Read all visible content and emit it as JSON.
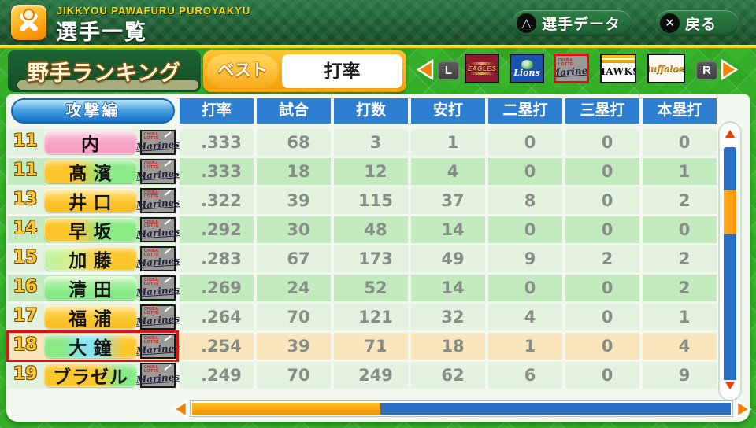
{
  "header": {
    "app_subtitle": "JIKKYOU PAWAFURU PUROYAKYU",
    "title": "選手一覧",
    "player_data_button": {
      "icon_glyph": "△",
      "label": "選手データ"
    },
    "back_button": {
      "icon_glyph": "✕",
      "label": "戻る"
    }
  },
  "subheader": {
    "ranking_title": "野手ランキング",
    "mode_label": "ベスト",
    "stat_selector_value": "打率",
    "left_bumper": "L",
    "right_bumper": "R",
    "teams": [
      {
        "id": "eagles",
        "label": "EAGLES",
        "selected": false
      },
      {
        "id": "lions",
        "label": "Lions",
        "selected": false
      },
      {
        "id": "marines",
        "label": "Marines",
        "sub_label": "CHIBA LOTTE",
        "selected": true
      },
      {
        "id": "hawks",
        "label": "HAWKS",
        "selected": false
      },
      {
        "id": "buffaloes",
        "label": "Buffaloes",
        "selected": false
      }
    ]
  },
  "table": {
    "section_label": "攻撃編",
    "columns": [
      "打率",
      "試合",
      "打数",
      "安打",
      "二塁打",
      "三塁打",
      "本塁打"
    ],
    "badge_label": "Marines",
    "badge_sub_label": "CHIBA LOTTE",
    "rows": [
      {
        "rank": "11",
        "name": "内",
        "pill": "pink",
        "selected": false,
        "stats": [
          ".333",
          "68",
          "3",
          "1",
          "0",
          "0",
          "0"
        ]
      },
      {
        "rank": "11",
        "name": "髙 濱",
        "pill": "yg",
        "selected": false,
        "stats": [
          ".333",
          "18",
          "12",
          "4",
          "0",
          "0",
          "1"
        ]
      },
      {
        "rank": "13",
        "name": "井 口",
        "pill": "yellow",
        "selected": false,
        "stats": [
          ".322",
          "39",
          "115",
          "37",
          "8",
          "0",
          "2"
        ]
      },
      {
        "rank": "14",
        "name": "早 坂",
        "pill": "yg",
        "selected": false,
        "stats": [
          ".292",
          "30",
          "48",
          "14",
          "0",
          "0",
          "0"
        ]
      },
      {
        "rank": "15",
        "name": "加 藤",
        "pill": "gy",
        "selected": false,
        "stats": [
          ".283",
          "67",
          "173",
          "49",
          "9",
          "2",
          "2"
        ]
      },
      {
        "rank": "16",
        "name": "清 田",
        "pill": "green",
        "selected": false,
        "stats": [
          ".269",
          "24",
          "52",
          "14",
          "0",
          "0",
          "2"
        ]
      },
      {
        "rank": "17",
        "name": "福 浦",
        "pill": "yellow",
        "selected": false,
        "stats": [
          ".264",
          "70",
          "121",
          "32",
          "4",
          "0",
          "1"
        ]
      },
      {
        "rank": "18",
        "name": "大 鐘",
        "pill": "gcy",
        "selected": true,
        "stats": [
          ".254",
          "39",
          "71",
          "18",
          "1",
          "0",
          "4"
        ]
      },
      {
        "rank": "19",
        "name": "ブラゼル",
        "pill": "ygl",
        "selected": false,
        "stats": [
          ".249",
          "70",
          "249",
          "62",
          "6",
          "0",
          "9"
        ]
      }
    ]
  },
  "colors": {
    "page_green": "#38b42b",
    "topbar_green": "#1a5a2e",
    "divider_yellow": "#f7ce00",
    "header_blue": "#2e7ed2",
    "row_light": "#e3f3df",
    "row_dark": "#c4ebbf",
    "row_selected": "#f9e6bd",
    "selection_red": "#dd1414",
    "arrow_orange": "#f28300",
    "rank_gold": "#ffc832"
  }
}
